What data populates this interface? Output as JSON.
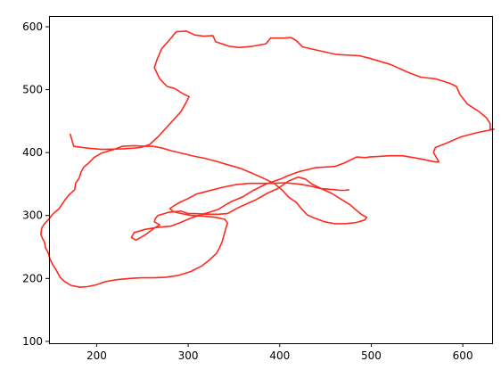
{
  "chart_data": {
    "type": "line",
    "title": "",
    "xlabel": "",
    "ylabel": "",
    "xlim": [
      148,
      632
    ],
    "ylim": [
      97,
      617
    ],
    "x_ticks": [
      200,
      300,
      400,
      500,
      600
    ],
    "y_ticks": [
      100,
      200,
      300,
      400,
      500,
      600
    ],
    "grid": false,
    "legend": "none",
    "series": [
      {
        "color": "#ff2a1f",
        "points": [
          [
            171,
            430
          ],
          [
            175,
            410
          ],
          [
            190,
            407
          ],
          [
            206,
            405
          ],
          [
            230,
            406
          ],
          [
            248,
            408
          ],
          [
            258,
            413
          ],
          [
            267,
            425
          ],
          [
            279,
            444
          ],
          [
            292,
            465
          ],
          [
            298,
            480
          ],
          [
            301,
            489
          ],
          [
            295,
            493
          ],
          [
            285,
            502
          ],
          [
            277,
            505
          ],
          [
            269,
            517
          ],
          [
            263,
            535
          ],
          [
            266,
            548
          ],
          [
            271,
            565
          ],
          [
            279,
            578
          ],
          [
            287,
            592
          ],
          [
            298,
            593
          ],
          [
            307,
            587
          ],
          [
            317,
            585
          ],
          [
            327,
            586
          ],
          [
            330,
            576
          ],
          [
            345,
            569
          ],
          [
            356,
            567
          ],
          [
            370,
            569
          ],
          [
            385,
            573
          ],
          [
            390,
            582
          ],
          [
            405,
            582
          ],
          [
            412,
            583
          ],
          [
            418,
            578
          ],
          [
            425,
            568
          ],
          [
            440,
            563
          ],
          [
            462,
            556
          ],
          [
            487,
            554
          ],
          [
            498,
            550
          ],
          [
            521,
            540
          ],
          [
            541,
            527
          ],
          [
            554,
            520
          ],
          [
            571,
            517
          ],
          [
            586,
            510
          ],
          [
            593,
            505
          ],
          [
            597,
            492
          ],
          [
            605,
            477
          ],
          [
            618,
            465
          ],
          [
            626,
            455
          ],
          [
            630,
            446
          ],
          [
            630,
            437
          ],
          [
            634,
            437
          ],
          [
            616,
            432
          ],
          [
            598,
            425
          ],
          [
            582,
            415
          ],
          [
            570,
            408
          ],
          [
            568,
            400
          ],
          [
            574,
            385
          ],
          [
            570,
            385
          ],
          [
            554,
            390
          ],
          [
            534,
            395
          ],
          [
            520,
            395
          ],
          [
            509,
            394
          ],
          [
            498,
            393
          ],
          [
            494,
            392
          ],
          [
            484,
            393
          ],
          [
            470,
            383
          ],
          [
            460,
            378
          ],
          [
            439,
            376
          ],
          [
            422,
            370
          ],
          [
            410,
            364
          ],
          [
            401,
            358
          ],
          [
            385,
            350
          ],
          [
            370,
            339
          ],
          [
            360,
            330
          ],
          [
            347,
            322
          ],
          [
            333,
            310
          ],
          [
            323,
            305
          ],
          [
            311,
            300
          ],
          [
            303,
            296
          ],
          [
            290,
            288
          ],
          [
            281,
            283
          ],
          [
            266,
            281
          ],
          [
            253,
            278
          ],
          [
            241,
            273
          ],
          [
            238,
            265
          ],
          [
            243,
            261
          ],
          [
            254,
            270
          ],
          [
            263,
            280
          ],
          [
            269,
            285
          ],
          [
            263,
            290
          ],
          [
            264,
            295
          ],
          [
            267,
            300
          ],
          [
            274,
            303
          ],
          [
            278,
            305
          ],
          [
            292,
            307
          ],
          [
            300,
            303
          ],
          [
            307,
            303
          ],
          [
            320,
            302
          ],
          [
            333,
            302
          ],
          [
            343,
            303
          ],
          [
            354,
            312
          ],
          [
            366,
            320
          ],
          [
            374,
            325
          ],
          [
            386,
            335
          ],
          [
            398,
            343
          ],
          [
            405,
            350
          ],
          [
            410,
            355
          ],
          [
            420,
            361
          ],
          [
            428,
            358
          ],
          [
            435,
            350
          ],
          [
            445,
            343
          ],
          [
            457,
            335
          ],
          [
            467,
            326
          ],
          [
            477,
            317
          ],
          [
            484,
            308
          ],
          [
            490,
            301
          ],
          [
            495,
            297
          ],
          [
            493,
            293
          ],
          [
            484,
            289
          ],
          [
            472,
            287
          ],
          [
            460,
            287
          ],
          [
            449,
            290
          ],
          [
            438,
            296
          ],
          [
            430,
            301
          ],
          [
            423,
            312
          ],
          [
            418,
            321
          ],
          [
            410,
            329
          ],
          [
            403,
            340
          ],
          [
            394,
            351
          ],
          [
            384,
            358
          ],
          [
            370,
            367
          ],
          [
            357,
            375
          ],
          [
            345,
            380
          ],
          [
            331,
            386
          ],
          [
            318,
            391
          ],
          [
            307,
            394
          ],
          [
            293,
            399
          ],
          [
            281,
            403
          ],
          [
            272,
            407
          ],
          [
            262,
            410
          ],
          [
            252,
            410
          ],
          [
            241,
            411
          ],
          [
            228,
            410
          ],
          [
            219,
            405
          ],
          [
            205,
            399
          ],
          [
            197,
            392
          ],
          [
            191,
            383
          ],
          [
            186,
            377
          ],
          [
            183,
            369
          ],
          [
            181,
            360
          ],
          [
            177,
            351
          ],
          [
            176,
            341
          ],
          [
            170,
            333
          ],
          [
            165,
            324
          ],
          [
            159,
            311
          ],
          [
            152,
            302
          ],
          [
            147,
            293
          ],
          [
            143,
            287
          ],
          [
            140,
            280
          ],
          [
            139,
            270
          ],
          [
            141,
            263
          ],
          [
            143,
            258
          ],
          [
            144,
            249
          ],
          [
            147,
            241
          ],
          [
            149,
            231
          ],
          [
            152,
            222
          ],
          [
            156,
            213
          ],
          [
            160,
            202
          ],
          [
            165,
            195
          ],
          [
            172,
            189
          ],
          [
            182,
            186
          ],
          [
            190,
            187
          ],
          [
            200,
            190
          ],
          [
            210,
            195
          ],
          [
            222,
            198
          ],
          [
            236,
            200
          ],
          [
            249,
            201
          ],
          [
            263,
            201
          ],
          [
            276,
            202
          ],
          [
            290,
            205
          ],
          [
            303,
            211
          ],
          [
            315,
            220
          ],
          [
            323,
            229
          ],
          [
            331,
            240
          ],
          [
            334,
            248
          ],
          [
            337,
            258
          ],
          [
            339,
            268
          ],
          [
            341,
            279
          ],
          [
            343,
            288
          ],
          [
            340,
            294
          ],
          [
            330,
            297
          ],
          [
            317,
            299
          ],
          [
            303,
            300
          ],
          [
            293,
            303
          ],
          [
            284,
            306
          ],
          [
            280,
            311
          ],
          [
            284,
            315
          ],
          [
            291,
            321
          ],
          [
            300,
            327
          ],
          [
            309,
            334
          ],
          [
            322,
            339
          ],
          [
            338,
            345
          ],
          [
            352,
            349
          ],
          [
            367,
            351
          ],
          [
            380,
            351
          ],
          [
            392,
            351
          ],
          [
            405,
            352
          ],
          [
            421,
            350
          ],
          [
            433,
            347
          ],
          [
            444,
            343
          ],
          [
            452,
            342
          ],
          [
            460,
            341
          ],
          [
            466,
            340
          ],
          [
            471,
            340
          ],
          [
            476,
            341
          ]
        ]
      }
    ]
  }
}
